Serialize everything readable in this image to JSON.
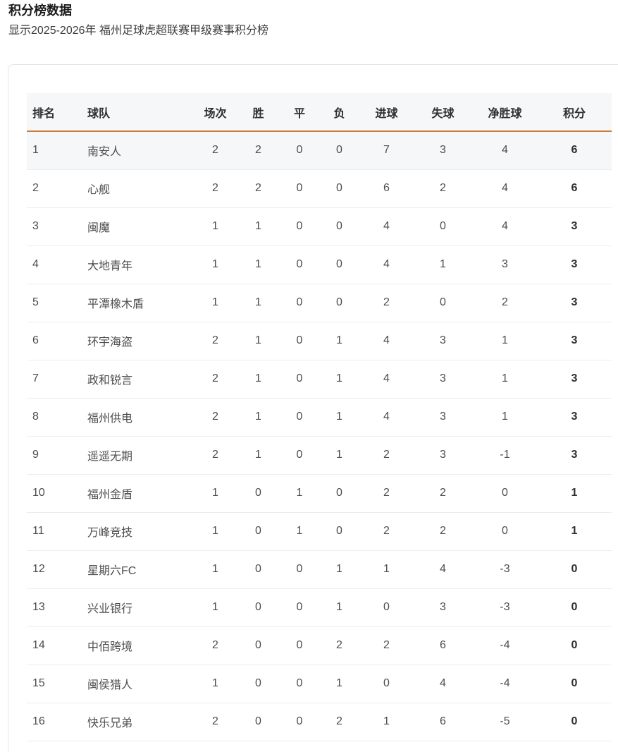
{
  "page": {
    "title": "积分榜数据",
    "subtitle": "显示2025-2026年 福州足球虎超联赛甲级赛事积分榜"
  },
  "colors": {
    "accent_orange": "#ee720d",
    "header_row_bg": "#f6f7f9",
    "highlight_row_bg": "#f6f7f8"
  },
  "standings_table": {
    "columns": [
      "排名",
      "球队",
      "场次",
      "胜",
      "平",
      "负",
      "进球",
      "失球",
      "净胜球",
      "积分"
    ],
    "fields": [
      "rank",
      "team",
      "played",
      "won",
      "drawn",
      "lost",
      "goals_for",
      "goals_against",
      "goal_diff",
      "points"
    ],
    "highlighted_row_index": 0,
    "rows": [
      {
        "rank": 1,
        "team": "南安人",
        "played": 2,
        "won": 2,
        "drawn": 0,
        "lost": 0,
        "goals_for": 7,
        "goals_against": 3,
        "goal_diff": 4,
        "points": 6
      },
      {
        "rank": 2,
        "team": "心舰",
        "played": 2,
        "won": 2,
        "drawn": 0,
        "lost": 0,
        "goals_for": 6,
        "goals_against": 2,
        "goal_diff": 4,
        "points": 6
      },
      {
        "rank": 3,
        "team": "闽魔",
        "played": 1,
        "won": 1,
        "drawn": 0,
        "lost": 0,
        "goals_for": 4,
        "goals_against": 0,
        "goal_diff": 4,
        "points": 3
      },
      {
        "rank": 4,
        "team": "大地青年",
        "played": 1,
        "won": 1,
        "drawn": 0,
        "lost": 0,
        "goals_for": 4,
        "goals_against": 1,
        "goal_diff": 3,
        "points": 3
      },
      {
        "rank": 5,
        "team": "平潭橡木盾",
        "played": 1,
        "won": 1,
        "drawn": 0,
        "lost": 0,
        "goals_for": 2,
        "goals_against": 0,
        "goal_diff": 2,
        "points": 3
      },
      {
        "rank": 6,
        "team": "环宇海盗",
        "played": 2,
        "won": 1,
        "drawn": 0,
        "lost": 1,
        "goals_for": 4,
        "goals_against": 3,
        "goal_diff": 1,
        "points": 3
      },
      {
        "rank": 7,
        "team": "政和锐言",
        "played": 2,
        "won": 1,
        "drawn": 0,
        "lost": 1,
        "goals_for": 4,
        "goals_against": 3,
        "goal_diff": 1,
        "points": 3
      },
      {
        "rank": 8,
        "team": "福州供电",
        "played": 2,
        "won": 1,
        "drawn": 0,
        "lost": 1,
        "goals_for": 4,
        "goals_against": 3,
        "goal_diff": 1,
        "points": 3
      },
      {
        "rank": 9,
        "team": "遥遥无期",
        "played": 2,
        "won": 1,
        "drawn": 0,
        "lost": 1,
        "goals_for": 2,
        "goals_against": 3,
        "goal_diff": -1,
        "points": 3
      },
      {
        "rank": 10,
        "team": "福州金盾",
        "played": 1,
        "won": 0,
        "drawn": 1,
        "lost": 0,
        "goals_for": 2,
        "goals_against": 2,
        "goal_diff": 0,
        "points": 1
      },
      {
        "rank": 11,
        "team": "万峰竞技",
        "played": 1,
        "won": 0,
        "drawn": 1,
        "lost": 0,
        "goals_for": 2,
        "goals_against": 2,
        "goal_diff": 0,
        "points": 1
      },
      {
        "rank": 12,
        "team": "星期六FC",
        "played": 1,
        "won": 0,
        "drawn": 0,
        "lost": 1,
        "goals_for": 1,
        "goals_against": 4,
        "goal_diff": -3,
        "points": 0
      },
      {
        "rank": 13,
        "team": "兴业银行",
        "played": 1,
        "won": 0,
        "drawn": 0,
        "lost": 1,
        "goals_for": 0,
        "goals_against": 3,
        "goal_diff": -3,
        "points": 0
      },
      {
        "rank": 14,
        "team": "中佰跨境",
        "played": 2,
        "won": 0,
        "drawn": 0,
        "lost": 2,
        "goals_for": 2,
        "goals_against": 6,
        "goal_diff": -4,
        "points": 0
      },
      {
        "rank": 15,
        "team": "闽侯猎人",
        "played": 1,
        "won": 0,
        "drawn": 0,
        "lost": 1,
        "goals_for": 0,
        "goals_against": 4,
        "goal_diff": -4,
        "points": 0
      },
      {
        "rank": 16,
        "team": "快乐兄弟",
        "played": 2,
        "won": 0,
        "drawn": 0,
        "lost": 2,
        "goals_for": 1,
        "goals_against": 6,
        "goal_diff": -5,
        "points": 0
      }
    ]
  }
}
